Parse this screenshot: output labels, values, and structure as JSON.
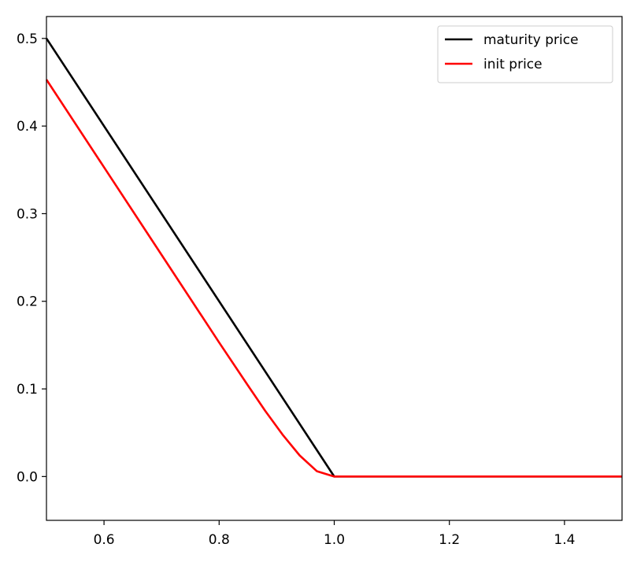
{
  "chart_data": {
    "type": "line",
    "title": "",
    "xlabel": "",
    "ylabel": "",
    "xlim": [
      0.5,
      1.5
    ],
    "ylim": [
      -0.05,
      0.525
    ],
    "xticks": [
      0.6,
      0.8,
      1.0,
      1.2,
      1.4
    ],
    "xtick_labels": [
      "0.6",
      "0.8",
      "1.0",
      "1.2",
      "1.4"
    ],
    "yticks": [
      0.0,
      0.1,
      0.2,
      0.3,
      0.4,
      0.5
    ],
    "ytick_labels": [
      "0.0",
      "0.1",
      "0.2",
      "0.3",
      "0.4",
      "0.5"
    ],
    "grid": false,
    "legend_position": "top-right",
    "series": [
      {
        "name": "maturity price",
        "color": "#000000",
        "x": [
          0.5,
          1.0,
          1.5
        ],
        "y": [
          0.5,
          0.0,
          0.0
        ]
      },
      {
        "name": "init price",
        "color": "#ff0000",
        "x": [
          0.5,
          0.6,
          0.7,
          0.8,
          0.85,
          0.88,
          0.91,
          0.94,
          0.97,
          1.0,
          1.03,
          1.1,
          1.2,
          1.3,
          1.4,
          1.5
        ],
        "y": [
          0.453,
          0.353,
          0.253,
          0.153,
          0.104,
          0.075,
          0.048,
          0.024,
          0.006,
          0.0,
          0.0,
          0.0,
          0.0,
          0.0,
          0.0,
          0.0
        ]
      }
    ]
  }
}
